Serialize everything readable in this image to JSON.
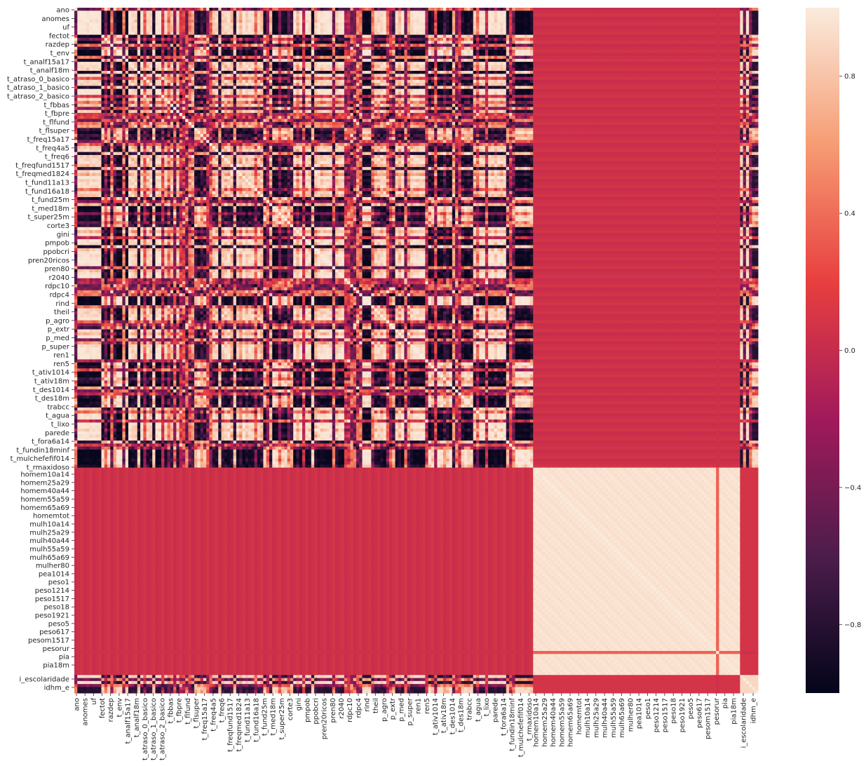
{
  "chart_data": {
    "type": "heatmap",
    "title": "",
    "xlabel": "",
    "ylabel": "",
    "matrix_kind": "correlation",
    "value_range": [
      -1.0,
      1.0
    ],
    "colormap": "rocket",
    "colormap_stops": [
      "#03051a",
      "#4c1d4b",
      "#a11a5b",
      "#e83f3f",
      "#f69c73",
      "#faebdd"
    ],
    "variable_count": 228,
    "y_tick_labels": [
      "ano",
      "anomes",
      "uf",
      "fectot",
      "razdep",
      "t_env",
      "t_analf15a17",
      "t_analf18m",
      "t_atraso_0_basico",
      "t_atraso_1_basico",
      "t_atraso_2_basico",
      "t_fbbas",
      "t_fbpre",
      "t_flfund",
      "t_flsuper",
      "t_freq15a17",
      "t_freq4a5",
      "t_freq6",
      "t_freqfund1517",
      "t_freqmed1824",
      "t_fund11a13",
      "t_fund16a18",
      "t_fund25m",
      "t_med18m",
      "t_super25m",
      "corte3",
      "gini",
      "pmpob",
      "ppobcri",
      "pren20ricos",
      "pren80",
      "r2040",
      "rdpc10",
      "rdpc4",
      "rind",
      "theil",
      "p_agro",
      "p_extr",
      "p_med",
      "p_super",
      "ren1",
      "ren5",
      "t_ativ1014",
      "t_ativ18m",
      "t_des1014",
      "t_des18m",
      "trabcc",
      "t_agua",
      "t_lixo",
      "parede",
      "t_fora6a14",
      "t_fundin18minf",
      "t_mulchefefif014",
      "t_rmaxidoso",
      "homem10a14",
      "homem25a29",
      "homem40a44",
      "homem55a59",
      "homem65a69",
      "homemtot",
      "mulh10a14",
      "mulh25a29",
      "mulh40a44",
      "mulh55a59",
      "mulh65a69",
      "mulher80",
      "pea1014",
      "peso1",
      "peso1214",
      "peso1517",
      "peso18",
      "peso1921",
      "peso5",
      "peso617",
      "pesom1517",
      "pesorur",
      "pia",
      "pia18m",
      "i_escolaridade",
      "idhm_e"
    ],
    "x_tick_labels": [
      "ano",
      "anomes",
      "uf",
      "fectot",
      "razdep",
      "t_env",
      "t_analf15a17",
      "t_analf18m",
      "t_atraso_0_basico",
      "t_atraso_1_basico",
      "t_atraso_2_basico",
      "t_fbbas",
      "t_fbpre",
      "t_flfund",
      "t_flsuper",
      "t_freq15a17",
      "t_freq4a5",
      "t_freq6",
      "t_freqfund1517",
      "t_freqmed1824",
      "t_fund11a13",
      "t_fund16a18",
      "t_fund25m",
      "t_med18m",
      "t_super25m",
      "corte3",
      "gini",
      "pmpob",
      "ppobcri",
      "pren20ricos",
      "pren80",
      "r2040",
      "rdpc10",
      "rdpc4",
      "rind",
      "theil",
      "p_agro",
      "p_extr",
      "p_med",
      "p_super",
      "ren1",
      "ren5",
      "t_ativ1014",
      "t_ativ18m",
      "t_des1014",
      "t_des18m",
      "trabcc",
      "t_agua",
      "t_lixo",
      "parede",
      "t_fora6a14",
      "t_fundin18minf",
      "t_mulchefefif014",
      "t_rmaxidoso",
      "homem10a14",
      "homem25a29",
      "homem40a44",
      "homem55a59",
      "homem65a69",
      "homemtot",
      "mulh10a14",
      "mulh25a29",
      "mulh40a44",
      "mulh55a59",
      "mulh65a69",
      "mulher80",
      "pea1014",
      "peso1",
      "peso1214",
      "peso1517",
      "peso18",
      "peso1921",
      "peso5",
      "peso617",
      "pesom1517",
      "pesorur",
      "pia",
      "pia18m",
      "i_escolaridade",
      "idhm_e"
    ],
    "block_structure": {
      "socioeconomic_block": [
        "ano",
        "t_rmaxidoso"
      ],
      "population_block": [
        "homem10a14",
        "pia18m"
      ],
      "index_block": [
        "i_escolaridade",
        "idhm_e"
      ],
      "socioeconomic_vs_population_r": 0.0,
      "population_vs_population_r": 0.97,
      "outlier_row": "pesorur"
    },
    "colorbar": {
      "ticks": [
        -0.8,
        -0.4,
        0.0,
        0.4,
        0.8
      ],
      "tick_labels": [
        "−0.8",
        "−0.4",
        "0.0",
        "0.4",
        "0.8"
      ],
      "range": [
        -1.0,
        1.0
      ]
    },
    "grid": false,
    "legend": "colorbar-right"
  }
}
